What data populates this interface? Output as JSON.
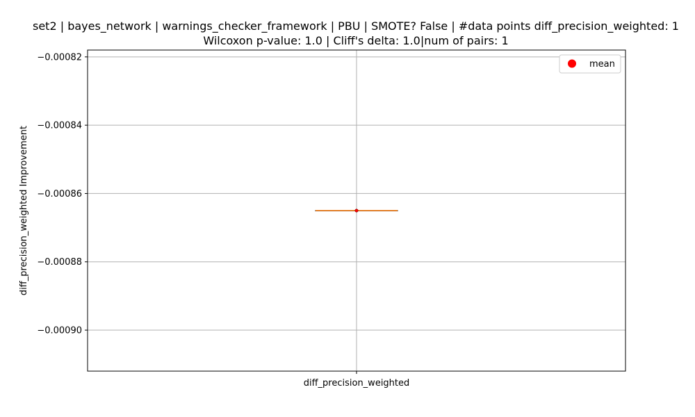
{
  "chart_data": {
    "type": "box",
    "title_line1": "set2 | bayes_network | warnings_checker_framework | PBU | SMOTE? False | #data points diff_precision_weighted: 1",
    "title_line2": "Wilcoxon p-value: 1.0 | Cliff's delta: 1.0|num of pairs: 1",
    "xlabel": "",
    "ylabel": "diff_precision_weighted Improvement",
    "categories": [
      "diff_precision_weighted"
    ],
    "ylim": [
      -0.000912,
      -0.000818
    ],
    "yticks": [
      -0.00082,
      -0.00084,
      -0.00086,
      -0.00088,
      -0.0009
    ],
    "ytick_labels": [
      "−0.00082",
      "−0.00084",
      "−0.00086",
      "−0.00088",
      "−0.00090"
    ],
    "grid": true,
    "series": [
      {
        "category": "diff_precision_weighted",
        "min": -0.000865,
        "q1": -0.000865,
        "median": -0.000865,
        "q3": -0.000865,
        "max": -0.000865,
        "mean": -0.000865
      }
    ],
    "legend": {
      "placement": "top-right",
      "entries": [
        {
          "label": "mean",
          "color": "#ff0000",
          "marker": "circle"
        }
      ]
    },
    "colors": {
      "median": "#ff7f0e",
      "mean": "#ff0000",
      "box": "#000000",
      "grid": "#b0b0b0"
    }
  }
}
